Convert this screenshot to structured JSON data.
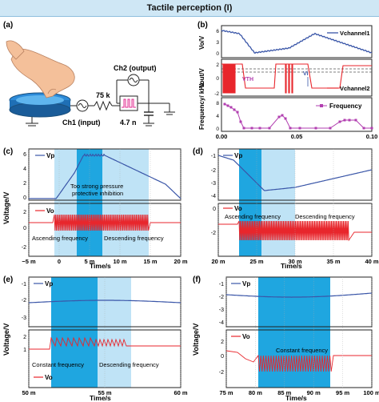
{
  "header": {
    "title": "Tactile perception (I)"
  },
  "panels": {
    "a": {
      "label": "(a)",
      "ch2": "Ch2 (output)",
      "ch1": "Ch1 (input)",
      "resistor": "75 k",
      "capacitor": "4.7 n"
    },
    "b": {
      "label": "(b)",
      "ylabel_top": "Vo/V",
      "ylabel_mid": "Vout/V",
      "ylabel_bot": "Frequency/\nkHz",
      "legend_top": "Vchannel1",
      "legend_mid": "Vchannel2",
      "legend_bot": "Frequency",
      "vth": "VTH",
      "vi": "Vi",
      "xticks": [
        "0.00",
        "0.05",
        "0.10"
      ]
    },
    "c": {
      "label": "(c)",
      "legend_vp": "Vp",
      "legend_vo": "Vo",
      "ylabel": "Voltage/V",
      "xlabel": "Time/s",
      "annot1": "Too strong pressure",
      "annot2": "protective inhibition",
      "asc": "Ascending frequency",
      "desc": "Descending frequency",
      "xticks": [
        "−5 m",
        "0",
        "5 m",
        "10 m",
        "15 m",
        "20 m"
      ]
    },
    "d": {
      "label": "(d)",
      "legend_vp": "Vp",
      "legend_vo": "Vo",
      "asc": "Ascending frequency",
      "desc": "Descending frequency",
      "xlabel": "Time/s",
      "xticks": [
        "20 m",
        "25 m",
        "30 m",
        "35 m",
        "40 m"
      ]
    },
    "e": {
      "label": "(e)",
      "legend_vp": "Vp",
      "legend_vo": "Vo",
      "ylabel": "Voltage/V",
      "const": "Constant frequency",
      "desc": "Descending frequency",
      "xlabel": "Time/s",
      "xticks": [
        "50 m",
        "55 m",
        "60 m"
      ]
    },
    "f": {
      "label": "(f)",
      "legend_vp": "Vp",
      "legend_vo": "Vo",
      "ylabel": "Voltage/V",
      "const": "Constant frequency",
      "xlabel": "Time/s",
      "xticks": [
        "75 m",
        "80 m",
        "85 m",
        "90 m",
        "95 m",
        "100 m"
      ]
    }
  },
  "colors": {
    "dark_band": "#1fa6e0",
    "light_band": "#bfe3f6",
    "vp": "#3a56a8",
    "vo": "#e8262c",
    "freq": "#b23fb0"
  }
}
